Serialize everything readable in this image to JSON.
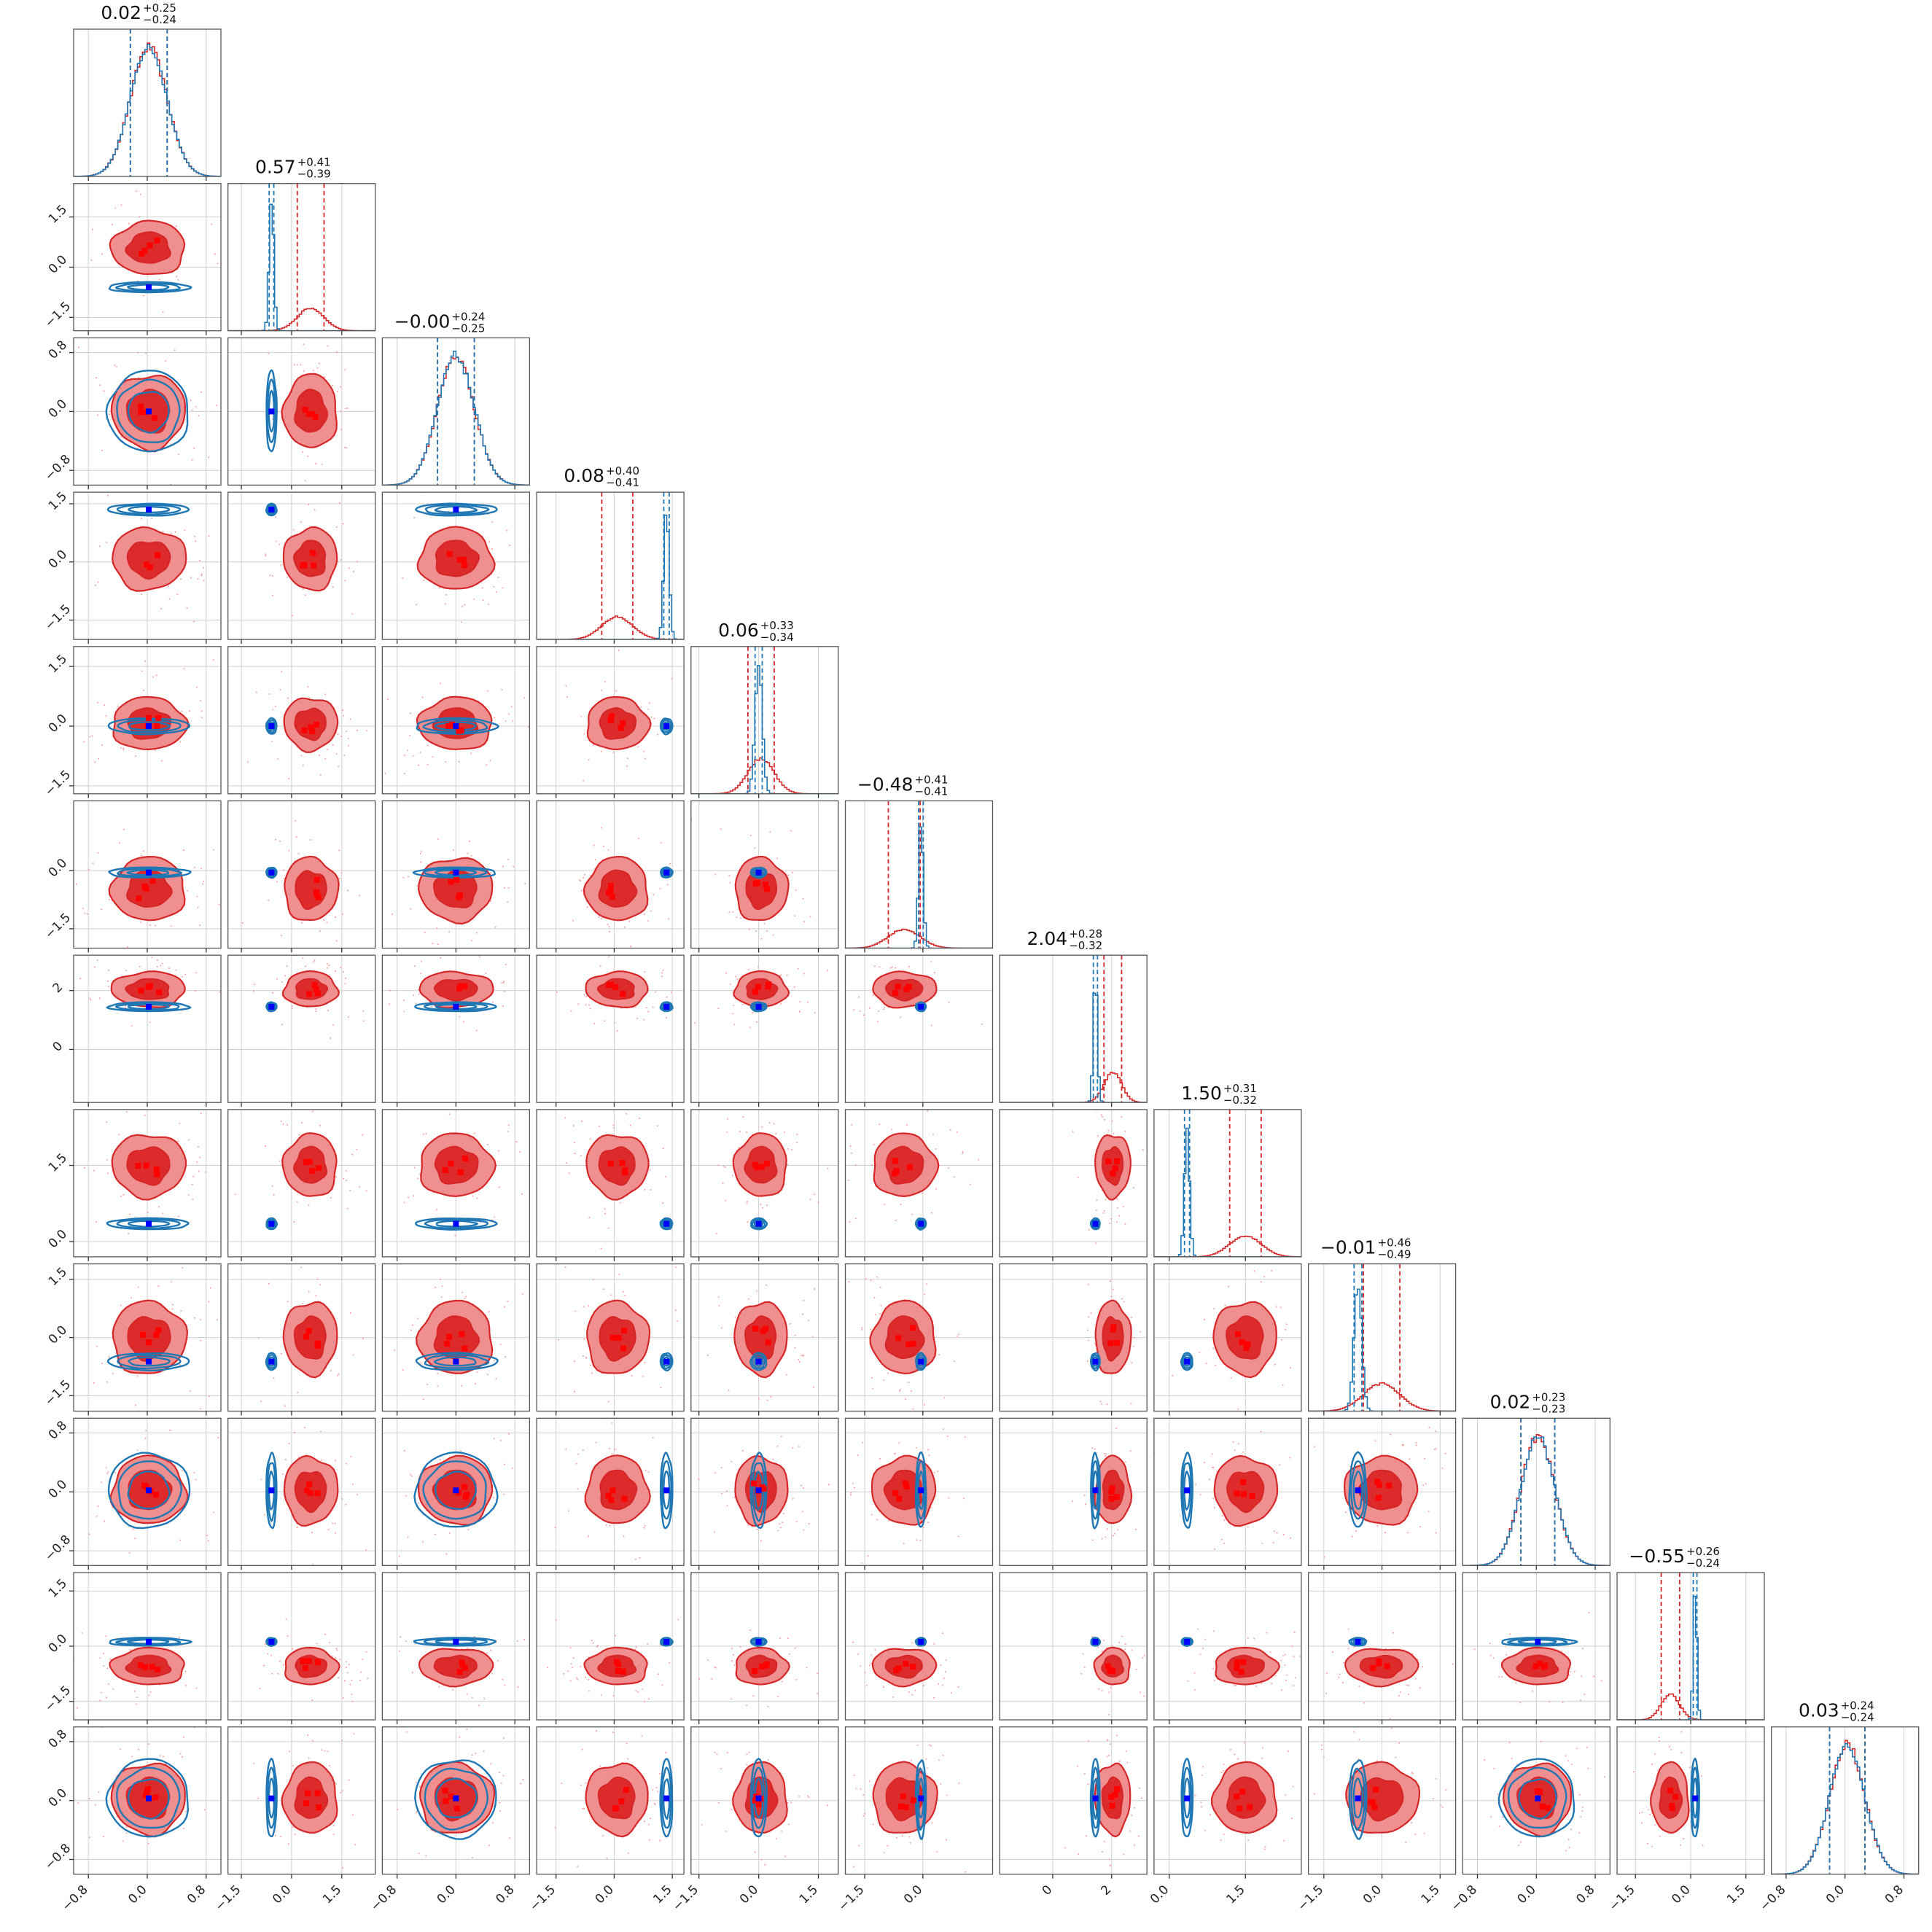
{
  "chart_data": {
    "type": "corner",
    "n_params": 12,
    "title": "",
    "colors": {
      "red_fill_outer": "#f08f8f",
      "red_fill_inner": "#dd2a2a",
      "red_line": "#d62728",
      "blue_line": "#1f77b4",
      "blue_marker": "#0000ff",
      "red_marker": "#ff0000",
      "grid": "#cfcfcf"
    },
    "series": [
      {
        "color": "#d62728"
      },
      {
        "color": "#1f77b4"
      }
    ],
    "params": [
      {
        "median": "0.02",
        "plus": "+0.25",
        "minus": "−0.24",
        "axis_range": [
          -1.0,
          1.0
        ],
        "ticks": [
          "−0.8",
          "0.0",
          "0.8"
        ],
        "tick_values": [
          -0.8,
          0.0,
          0.8
        ],
        "red": {
          "mean": 0.02,
          "sd": 0.25
        },
        "blue": {
          "mean": 0.02,
          "sd": 0.25
        }
      },
      {
        "median": "0.57",
        "plus": "+0.41",
        "minus": "−0.39",
        "axis_range": [
          -1.9,
          2.5
        ],
        "ticks": [
          "−1.5",
          "0.0",
          "1.5"
        ],
        "tick_values": [
          -1.5,
          0.0,
          1.5
        ],
        "red": {
          "mean": 0.57,
          "sd": 0.4
        },
        "blue": {
          "mean": -0.6,
          "sd": 0.07
        }
      },
      {
        "median": "−0.00",
        "plus": "+0.24",
        "minus": "−0.25",
        "axis_range": [
          -1.0,
          1.0
        ],
        "ticks": [
          "−0.8",
          "0.0",
          "0.8"
        ],
        "tick_values": [
          -0.8,
          0.0,
          0.8
        ],
        "red": {
          "mean": 0.0,
          "sd": 0.25
        },
        "blue": {
          "mean": 0.0,
          "sd": 0.25
        }
      },
      {
        "median": "0.08",
        "plus": "+0.40",
        "minus": "−0.41",
        "axis_range": [
          -2.0,
          1.8
        ],
        "ticks": [
          "−1.5",
          "0.0",
          "1.5"
        ],
        "tick_values": [
          -1.5,
          0.0,
          1.5
        ],
        "red": {
          "mean": 0.08,
          "sd": 0.4
        },
        "blue": {
          "mean": 1.35,
          "sd": 0.07
        }
      },
      {
        "median": "0.06",
        "plus": "+0.33",
        "minus": "−0.34",
        "axis_range": [
          -1.7,
          2.0
        ],
        "ticks": [
          "−1.5",
          "0.0",
          "1.5"
        ],
        "tick_values": [
          -1.5,
          0.0,
          1.5
        ],
        "red": {
          "mean": 0.06,
          "sd": 0.33
        },
        "blue": {
          "mean": 0.0,
          "sd": 0.09
        }
      },
      {
        "median": "−0.48",
        "plus": "+0.41",
        "minus": "−0.41",
        "axis_range": [
          -2.0,
          1.8
        ],
        "ticks": [
          "−1.5",
          "0.0"
        ],
        "tick_values": [
          -1.5,
          0.0
        ],
        "red": {
          "mean": -0.48,
          "sd": 0.41
        },
        "blue": {
          "mean": -0.05,
          "sd": 0.06
        }
      },
      {
        "median": "2.04",
        "plus": "+0.28",
        "minus": "−0.32",
        "axis_range": [
          -1.8,
          3.2
        ],
        "ticks": [
          "0",
          "2"
        ],
        "tick_values": [
          0,
          2
        ],
        "red": {
          "mean": 2.04,
          "sd": 0.3
        },
        "blue": {
          "mean": 1.45,
          "sd": 0.07
        }
      },
      {
        "median": "1.50",
        "plus": "+0.31",
        "minus": "−0.32",
        "axis_range": [
          -0.3,
          2.6
        ],
        "ticks": [
          "0.0",
          "1.5"
        ],
        "tick_values": [
          0.0,
          1.5
        ],
        "red": {
          "mean": 1.5,
          "sd": 0.31
        },
        "blue": {
          "mean": 0.35,
          "sd": 0.05
        }
      },
      {
        "median": "−0.01",
        "plus": "+0.46",
        "minus": "−0.49",
        "axis_range": [
          -1.9,
          1.9
        ],
        "ticks": [
          "−1.5",
          "0.0",
          "1.5"
        ],
        "tick_values": [
          -1.5,
          0.0,
          1.5
        ],
        "red": {
          "mean": -0.01,
          "sd": 0.47
        },
        "blue": {
          "mean": -0.62,
          "sd": 0.1
        }
      },
      {
        "median": "0.02",
        "plus": "+0.23",
        "minus": "−0.23",
        "axis_range": [
          -1.0,
          1.0
        ],
        "ticks": [
          "−0.8",
          "0.0",
          "0.8"
        ],
        "tick_values": [
          -0.8,
          0.0,
          0.8
        ],
        "red": {
          "mean": 0.02,
          "sd": 0.23
        },
        "blue": {
          "mean": 0.02,
          "sd": 0.23
        }
      },
      {
        "median": "−0.55",
        "plus": "+0.26",
        "minus": "−0.24",
        "axis_range": [
          -2.0,
          2.0
        ],
        "ticks": [
          "−1.5",
          "0.0",
          "1.5"
        ],
        "tick_values": [
          -1.5,
          0.0,
          1.5
        ],
        "red": {
          "mean": -0.55,
          "sd": 0.25
        },
        "blue": {
          "mean": 0.12,
          "sd": 0.05
        }
      },
      {
        "median": "0.03",
        "plus": "+0.24",
        "minus": "−0.24",
        "axis_range": [
          -1.0,
          1.0
        ],
        "ticks": [
          "−0.8",
          "0.0",
          "0.8"
        ],
        "tick_values": [
          -0.8,
          0.0,
          0.8
        ],
        "red": {
          "mean": 0.03,
          "sd": 0.24
        },
        "blue": {
          "mean": 0.03,
          "sd": 0.24
        }
      }
    ],
    "grid": true,
    "legend": "none"
  }
}
